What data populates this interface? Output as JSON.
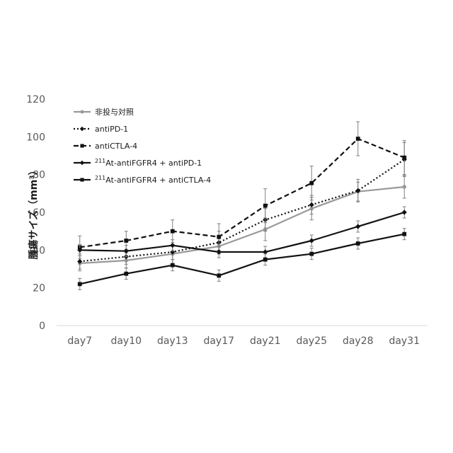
{
  "chart_data": {
    "type": "line",
    "categories": [
      "day7",
      "day10",
      "day13",
      "day17",
      "day21",
      "day25",
      "day28",
      "day31"
    ],
    "ylabel": "腫瘍サイズ（mm³）",
    "ylim": [
      0,
      120
    ],
    "yticks": [
      0,
      20,
      40,
      60,
      80,
      100,
      120
    ],
    "grid": false,
    "legend_position": "top-left",
    "series": [
      {
        "name": "非投与対照",
        "color": "#999999",
        "line": "solid",
        "marker": "circle",
        "values": [
          33,
          34.5,
          38,
          42,
          51,
          62,
          71,
          73.5
        ],
        "errors": [
          4,
          4,
          5,
          4,
          6,
          6,
          5,
          6
        ]
      },
      {
        "name": "antiPD-1",
        "color": "#111111",
        "line": "dotted",
        "marker": "diamond",
        "values": [
          34,
          36.5,
          39,
          44,
          56,
          64,
          71.5,
          88
        ],
        "errors": [
          4,
          4,
          4,
          6,
          6,
          5,
          6,
          9
        ]
      },
      {
        "name": "antiCTLA-4",
        "color": "#111111",
        "line": "dashed",
        "marker": "square",
        "values": [
          41.5,
          45,
          50,
          47,
          63.5,
          75.5,
          99,
          89
        ],
        "errors": [
          6,
          5,
          6,
          7,
          9,
          9,
          9,
          9
        ]
      },
      {
        "name_prefix": "211",
        "name": "At-antiFGFR4 + antiPD-1",
        "color": "#111111",
        "line": "solid",
        "marker": "diamond",
        "values": [
          40,
          39.5,
          42.5,
          39,
          39,
          45,
          52.5,
          60
        ],
        "errors": [
          3,
          3,
          3,
          3,
          3,
          3,
          3,
          3
        ]
      },
      {
        "name_prefix": "211",
        "name": "At-antiFGFR4 + antiCTLA-4",
        "color": "#111111",
        "line": "solid",
        "marker": "square",
        "values": [
          22,
          27.5,
          32,
          26.5,
          35,
          38,
          43.5,
          48.5
        ],
        "errors": [
          3,
          3,
          3,
          3,
          3,
          3,
          3,
          3
        ]
      }
    ]
  }
}
